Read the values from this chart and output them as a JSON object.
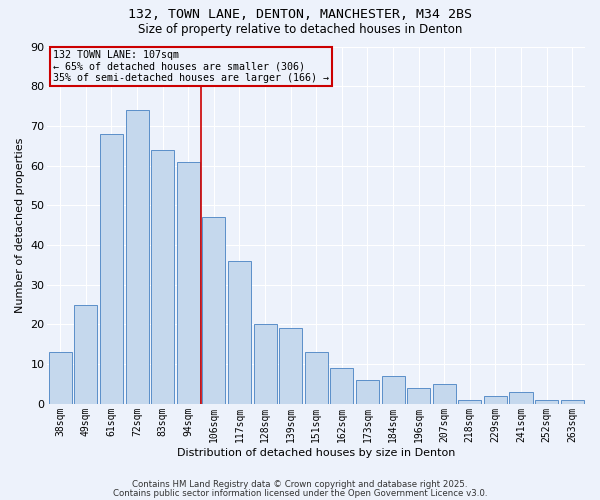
{
  "title1": "132, TOWN LANE, DENTON, MANCHESTER, M34 2BS",
  "title2": "Size of property relative to detached houses in Denton",
  "xlabel": "Distribution of detached houses by size in Denton",
  "ylabel": "Number of detached properties",
  "bar_labels": [
    "38sqm",
    "49sqm",
    "61sqm",
    "72sqm",
    "83sqm",
    "94sqm",
    "106sqm",
    "117sqm",
    "128sqm",
    "139sqm",
    "151sqm",
    "162sqm",
    "173sqm",
    "184sqm",
    "196sqm",
    "207sqm",
    "218sqm",
    "229sqm",
    "241sqm",
    "252sqm",
    "263sqm"
  ],
  "bar_values": [
    13,
    25,
    68,
    74,
    64,
    61,
    47,
    36,
    20,
    19,
    13,
    9,
    6,
    7,
    4,
    5,
    1,
    2,
    3,
    1,
    1
  ],
  "bar_color": "#c5d8ed",
  "bar_edgecolor": "#5b8fc9",
  "background_color": "#edf2fb",
  "grid_color": "#ffffff",
  "vline_x": 5.5,
  "vline_color": "#cc0000",
  "annotation_text": "132 TOWN LANE: 107sqm\n← 65% of detached houses are smaller (306)\n35% of semi-detached houses are larger (166) →",
  "annotation_box_color": "#cc0000",
  "ylim": [
    0,
    90
  ],
  "yticks": [
    0,
    10,
    20,
    30,
    40,
    50,
    60,
    70,
    80,
    90
  ],
  "footnote1": "Contains HM Land Registry data © Crown copyright and database right 2025.",
  "footnote2": "Contains public sector information licensed under the Open Government Licence v3.0."
}
